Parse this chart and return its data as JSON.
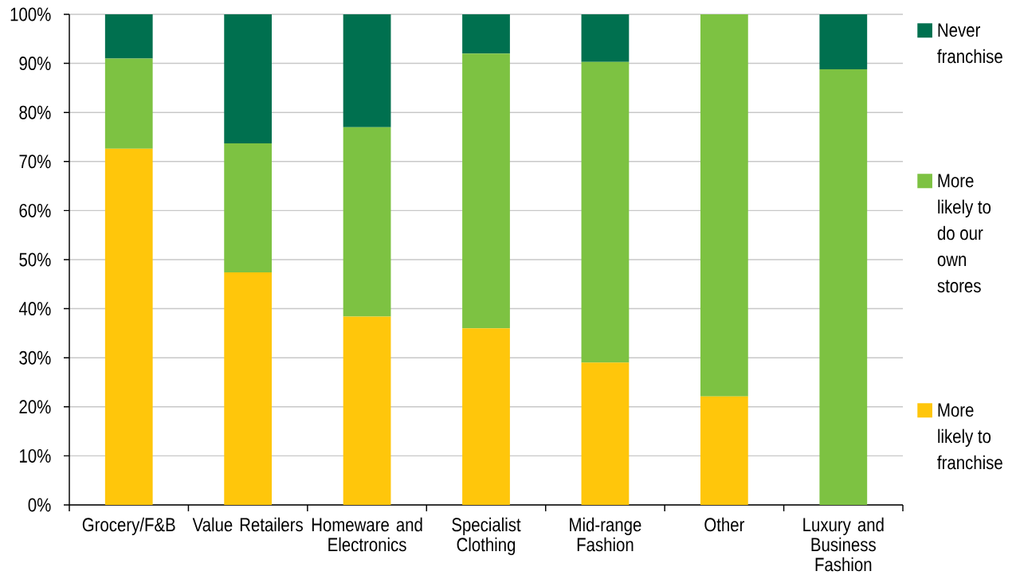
{
  "chart_data": {
    "type": "bar",
    "stacked": true,
    "categories": [
      "Grocery/F&B",
      "Value Retailers",
      "Homeware and Electronics",
      "Specialist Clothing",
      "Mid-range Fashion",
      "Other",
      "Luxury and Business Fashion"
    ],
    "series": [
      {
        "name": "More likely to franchise",
        "color": "#FFC60B",
        "values": [
          72.6,
          47.4,
          38.4,
          36.0,
          29.0,
          22.1,
          0
        ]
      },
      {
        "name": "More likely to do our own stores",
        "color": "#7DC242",
        "values": [
          18.4,
          26.3,
          38.6,
          56.0,
          61.3,
          77.9,
          88.8
        ]
      },
      {
        "name": "Never franchise",
        "color": "#00704F",
        "values": [
          9.0,
          26.3,
          23.0,
          8.0,
          9.7,
          0,
          11.2
        ]
      }
    ],
    "ylim": [
      0,
      100
    ],
    "yticks": [
      {
        "value": 0,
        "label": "0%"
      },
      {
        "value": 10,
        "label": "10%"
      },
      {
        "value": 20,
        "label": "20%"
      },
      {
        "value": 30,
        "label": "30%"
      },
      {
        "value": 40,
        "label": "40%"
      },
      {
        "value": 50,
        "label": "50%"
      },
      {
        "value": 60,
        "label": "60%"
      },
      {
        "value": 70,
        "label": "70%"
      },
      {
        "value": 80,
        "label": "80%"
      },
      {
        "value": 90,
        "label": "90%"
      },
      {
        "value": 100,
        "label": "100%"
      }
    ],
    "grid": "y",
    "legend": "right"
  }
}
